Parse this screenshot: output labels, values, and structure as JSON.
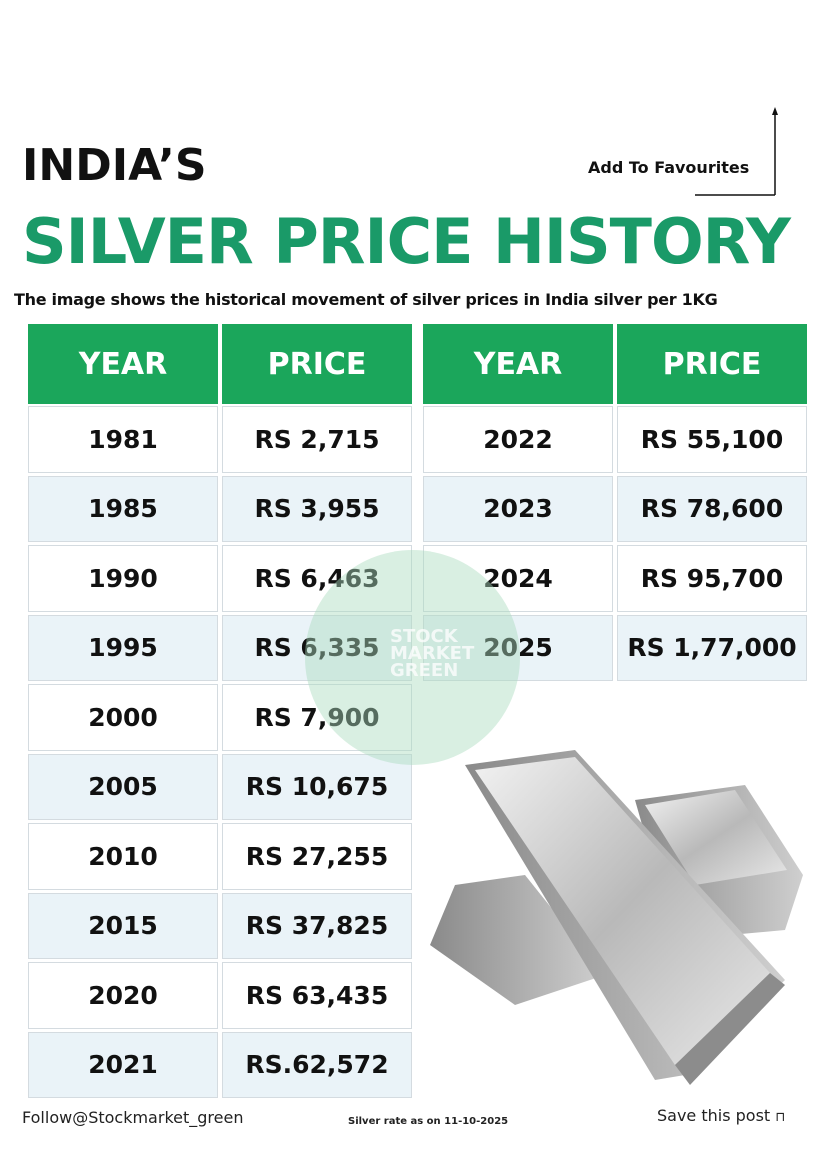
{
  "header": {
    "title": "INDIA’S",
    "headline": "SILVER PRICE HISTORY",
    "subtitle": "The image shows the historical movement of silver prices in India silver per 1KG",
    "favourite": "Add To Favourites"
  },
  "tables": [
    {
      "columns": [
        "YEAR",
        "PRICE"
      ],
      "rows": [
        [
          "1981",
          "RS 2,715"
        ],
        [
          "1985",
          "RS 3,955"
        ],
        [
          "1990",
          "RS 6,463"
        ],
        [
          "1995",
          "RS 6,335"
        ],
        [
          "2000",
          "RS 7,900"
        ],
        [
          "2005",
          "RS 10,675"
        ],
        [
          "2010",
          "RS 27,255"
        ],
        [
          "2015",
          "RS 37,825"
        ],
        [
          "2020",
          "RS 63,435"
        ],
        [
          "2021",
          "RS.62,572"
        ]
      ]
    },
    {
      "columns": [
        "YEAR",
        "PRICE"
      ],
      "rows": [
        [
          "2022",
          "RS 55,100"
        ],
        [
          "2023",
          "RS 78,600"
        ],
        [
          "2024",
          "RS 95,700"
        ],
        [
          "2025",
          "RS 1,77,000"
        ]
      ]
    }
  ],
  "watermark": [
    "STOCK",
    "MARKET",
    "GREEN"
  ],
  "footer": {
    "follow": "Follow@Stockmarket_green",
    "note": "Silver rate as on 11-10-2025",
    "save": "Save this post"
  }
}
